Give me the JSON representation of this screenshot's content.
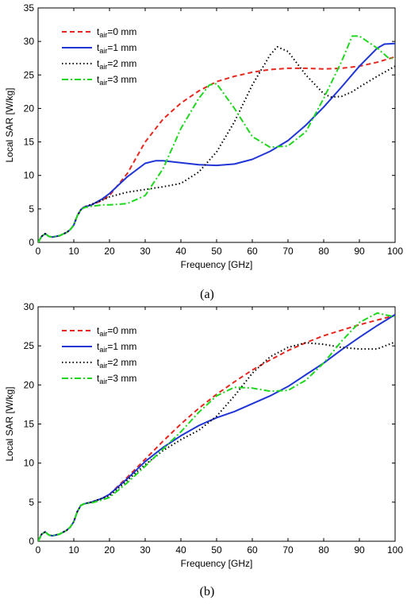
{
  "chart_data": [
    {
      "type": "line",
      "caption": "(a)",
      "xlabel": "Frequency [GHz]",
      "ylabel": "Local SAR [W/kg]",
      "xlim": [
        0,
        100
      ],
      "ylim": [
        0,
        35
      ],
      "xticks": [
        "0",
        "10",
        "20",
        "30",
        "40",
        "50",
        "60",
        "70",
        "80",
        "90",
        "100"
      ],
      "yticks": [
        "0",
        "5",
        "10",
        "15",
        "20",
        "25",
        "30",
        "35"
      ],
      "grid": false,
      "legend_position": "top-left",
      "series": [
        {
          "name_sub": "air",
          "name_main": "t",
          "name_rest": "=0 mm",
          "color": "#e8261d",
          "dash": "dashed",
          "points": [
            [
              0,
              0
            ],
            [
              1,
              0.9
            ],
            [
              2,
              1.3
            ],
            [
              3,
              0.9
            ],
            [
              4,
              0.8
            ],
            [
              6,
              1.0
            ],
            [
              8,
              1.5
            ],
            [
              9,
              1.9
            ],
            [
              10,
              2.6
            ],
            [
              11,
              4.0
            ],
            [
              12,
              4.9
            ],
            [
              13,
              5.3
            ],
            [
              15,
              5.6
            ],
            [
              18,
              6.3
            ],
            [
              20,
              7.0
            ],
            [
              25,
              10.3
            ],
            [
              30,
              15.0
            ],
            [
              35,
              18.4
            ],
            [
              40,
              20.8
            ],
            [
              45,
              22.6
            ],
            [
              50,
              24.0
            ],
            [
              55,
              24.8
            ],
            [
              60,
              25.4
            ],
            [
              65,
              25.8
            ],
            [
              70,
              26.0
            ],
            [
              75,
              26.0
            ],
            [
              80,
              25.9
            ],
            [
              85,
              26.0
            ],
            [
              90,
              26.3
            ],
            [
              95,
              26.9
            ],
            [
              100,
              27.7
            ]
          ]
        },
        {
          "name_sub": "air",
          "name_main": "t",
          "name_rest": "=1 mm",
          "color": "#1f35d6",
          "dash": "solid",
          "points": [
            [
              0,
              0
            ],
            [
              1,
              0.9
            ],
            [
              2,
              1.3
            ],
            [
              3,
              0.9
            ],
            [
              4,
              0.8
            ],
            [
              6,
              1.0
            ],
            [
              8,
              1.5
            ],
            [
              9,
              1.9
            ],
            [
              10,
              2.6
            ],
            [
              11,
              4.0
            ],
            [
              12,
              4.9
            ],
            [
              13,
              5.3
            ],
            [
              15,
              5.6
            ],
            [
              18,
              6.5
            ],
            [
              20,
              7.3
            ],
            [
              25,
              9.8
            ],
            [
              30,
              11.8
            ],
            [
              33,
              12.2
            ],
            [
              35,
              12.2
            ],
            [
              40,
              11.9
            ],
            [
              45,
              11.6
            ],
            [
              50,
              11.5
            ],
            [
              55,
              11.7
            ],
            [
              60,
              12.4
            ],
            [
              65,
              13.6
            ],
            [
              70,
              15.2
            ],
            [
              75,
              17.5
            ],
            [
              80,
              20.2
            ],
            [
              85,
              23.2
            ],
            [
              90,
              26.3
            ],
            [
              95,
              29.0
            ],
            [
              97,
              29.6
            ],
            [
              100,
              29.7
            ]
          ]
        },
        {
          "name_sub": "air",
          "name_main": "t",
          "name_rest": "=2 mm",
          "color": "#000000",
          "dash": "dotted",
          "points": [
            [
              0,
              0
            ],
            [
              1,
              0.9
            ],
            [
              2,
              1.3
            ],
            [
              3,
              0.9
            ],
            [
              4,
              0.8
            ],
            [
              6,
              1.0
            ],
            [
              8,
              1.5
            ],
            [
              9,
              1.9
            ],
            [
              10,
              2.6
            ],
            [
              11,
              4.0
            ],
            [
              12,
              4.9
            ],
            [
              13,
              5.3
            ],
            [
              15,
              5.7
            ],
            [
              18,
              6.3
            ],
            [
              20,
              6.8
            ],
            [
              25,
              7.5
            ],
            [
              30,
              7.9
            ],
            [
              35,
              8.3
            ],
            [
              40,
              8.8
            ],
            [
              45,
              10.5
            ],
            [
              50,
              13.5
            ],
            [
              55,
              18.0
            ],
            [
              60,
              23.5
            ],
            [
              65,
              28.0
            ],
            [
              67,
              29.2
            ],
            [
              70,
              28.5
            ],
            [
              75,
              25.0
            ],
            [
              80,
              22.2
            ],
            [
              82,
              21.7
            ],
            [
              85,
              21.8
            ],
            [
              88,
              22.5
            ],
            [
              90,
              23.2
            ],
            [
              95,
              24.8
            ],
            [
              100,
              26.3
            ]
          ]
        },
        {
          "name_sub": "air",
          "name_main": "t",
          "name_rest": "=3 mm",
          "color": "#1ed81e",
          "dash": "dashdot",
          "points": [
            [
              0,
              0
            ],
            [
              1,
              0.9
            ],
            [
              2,
              1.3
            ],
            [
              3,
              0.9
            ],
            [
              4,
              0.8
            ],
            [
              6,
              1.0
            ],
            [
              8,
              1.5
            ],
            [
              9,
              1.9
            ],
            [
              10,
              2.6
            ],
            [
              11,
              4.0
            ],
            [
              12,
              4.9
            ],
            [
              13,
              5.2
            ],
            [
              15,
              5.4
            ],
            [
              18,
              5.6
            ],
            [
              20,
              5.6
            ],
            [
              25,
              5.8
            ],
            [
              30,
              7.0
            ],
            [
              35,
              11.0
            ],
            [
              40,
              17.0
            ],
            [
              45,
              21.5
            ],
            [
              48,
              23.5
            ],
            [
              50,
              23.7
            ],
            [
              55,
              20.0
            ],
            [
              60,
              15.8
            ],
            [
              65,
              14.2
            ],
            [
              70,
              14.4
            ],
            [
              75,
              16.5
            ],
            [
              80,
              21.5
            ],
            [
              85,
              27.0
            ],
            [
              88,
              30.8
            ],
            [
              90,
              30.8
            ],
            [
              95,
              29.0
            ],
            [
              98,
              27.6
            ],
            [
              100,
              27.4
            ]
          ]
        }
      ]
    },
    {
      "type": "line",
      "caption": "(b)",
      "xlabel": "Frequency [GHz]",
      "ylabel": "Local SAR [W/kg]",
      "xlim": [
        0,
        100
      ],
      "ylim": [
        0,
        30
      ],
      "xticks": [
        "0",
        "10",
        "20",
        "30",
        "40",
        "50",
        "60",
        "70",
        "80",
        "90",
        "100"
      ],
      "yticks": [
        "0",
        "5",
        "10",
        "15",
        "20",
        "25",
        "30"
      ],
      "grid": false,
      "legend_position": "top-left",
      "series": [
        {
          "name_sub": "air",
          "name_main": "t",
          "name_rest": "=0 mm",
          "color": "#e8261d",
          "dash": "dashed",
          "points": [
            [
              0,
              0
            ],
            [
              1,
              0.9
            ],
            [
              2,
              1.2
            ],
            [
              3,
              0.8
            ],
            [
              4,
              0.7
            ],
            [
              6,
              0.9
            ],
            [
              8,
              1.4
            ],
            [
              9,
              1.8
            ],
            [
              10,
              2.5
            ],
            [
              11,
              3.8
            ],
            [
              12,
              4.6
            ],
            [
              13,
              4.8
            ],
            [
              15,
              5.0
            ],
            [
              18,
              5.5
            ],
            [
              20,
              6.0
            ],
            [
              25,
              8.2
            ],
            [
              30,
              10.5
            ],
            [
              35,
              12.8
            ],
            [
              40,
              15.0
            ],
            [
              45,
              17.0
            ],
            [
              50,
              18.8
            ],
            [
              55,
              20.4
            ],
            [
              60,
              21.9
            ],
            [
              65,
              23.2
            ],
            [
              70,
              24.4
            ],
            [
              75,
              25.4
            ],
            [
              80,
              26.3
            ],
            [
              85,
              27.0
            ],
            [
              90,
              27.7
            ],
            [
              95,
              28.3
            ],
            [
              100,
              28.9
            ]
          ]
        },
        {
          "name_sub": "air",
          "name_main": "t",
          "name_rest": "=1 mm",
          "color": "#1f35d6",
          "dash": "solid",
          "points": [
            [
              0,
              0
            ],
            [
              1,
              0.9
            ],
            [
              2,
              1.2
            ],
            [
              3,
              0.8
            ],
            [
              4,
              0.7
            ],
            [
              6,
              0.9
            ],
            [
              8,
              1.4
            ],
            [
              9,
              1.8
            ],
            [
              10,
              2.5
            ],
            [
              11,
              3.8
            ],
            [
              12,
              4.6
            ],
            [
              13,
              4.8
            ],
            [
              15,
              5.0
            ],
            [
              18,
              5.5
            ],
            [
              20,
              6.0
            ],
            [
              25,
              8.0
            ],
            [
              30,
              10.2
            ],
            [
              35,
              12.0
            ],
            [
              40,
              13.5
            ],
            [
              45,
              14.8
            ],
            [
              50,
              15.8
            ],
            [
              55,
              16.6
            ],
            [
              60,
              17.6
            ],
            [
              65,
              18.6
            ],
            [
              70,
              19.8
            ],
            [
              75,
              21.3
            ],
            [
              80,
              22.8
            ],
            [
              85,
              24.5
            ],
            [
              90,
              26.1
            ],
            [
              95,
              27.6
            ],
            [
              100,
              29.0
            ]
          ]
        },
        {
          "name_sub": "air",
          "name_main": "t",
          "name_rest": "=2 mm",
          "color": "#000000",
          "dash": "dotted",
          "points": [
            [
              0,
              0
            ],
            [
              1,
              0.9
            ],
            [
              2,
              1.2
            ],
            [
              3,
              0.8
            ],
            [
              4,
              0.7
            ],
            [
              6,
              0.9
            ],
            [
              8,
              1.4
            ],
            [
              9,
              1.8
            ],
            [
              10,
              2.5
            ],
            [
              11,
              3.8
            ],
            [
              12,
              4.6
            ],
            [
              13,
              4.8
            ],
            [
              15,
              5.0
            ],
            [
              18,
              5.5
            ],
            [
              20,
              5.8
            ],
            [
              25,
              7.8
            ],
            [
              30,
              9.8
            ],
            [
              35,
              11.6
            ],
            [
              40,
              13.0
            ],
            [
              45,
              14.2
            ],
            [
              50,
              16.0
            ],
            [
              55,
              18.6
            ],
            [
              60,
              21.5
            ],
            [
              65,
              23.6
            ],
            [
              70,
              24.8
            ],
            [
              75,
              25.4
            ],
            [
              80,
              25.2
            ],
            [
              85,
              24.8
            ],
            [
              90,
              24.6
            ],
            [
              95,
              24.6
            ],
            [
              100,
              25.5
            ]
          ]
        },
        {
          "name_sub": "air",
          "name_main": "t",
          "name_rest": "=3 mm",
          "color": "#1ed81e",
          "dash": "dashdot",
          "points": [
            [
              0,
              0
            ],
            [
              1,
              0.9
            ],
            [
              2,
              1.2
            ],
            [
              3,
              0.8
            ],
            [
              4,
              0.7
            ],
            [
              6,
              0.9
            ],
            [
              8,
              1.4
            ],
            [
              9,
              1.8
            ],
            [
              10,
              2.5
            ],
            [
              11,
              3.8
            ],
            [
              12,
              4.6
            ],
            [
              13,
              4.8
            ],
            [
              15,
              4.9
            ],
            [
              18,
              5.3
            ],
            [
              20,
              5.6
            ],
            [
              25,
              7.5
            ],
            [
              30,
              9.6
            ],
            [
              35,
              11.8
            ],
            [
              40,
              14.0
            ],
            [
              45,
              16.5
            ],
            [
              50,
              18.6
            ],
            [
              55,
              19.7
            ],
            [
              60,
              19.6
            ],
            [
              65,
              19.2
            ],
            [
              70,
              19.3
            ],
            [
              75,
              20.6
            ],
            [
              80,
              22.8
            ],
            [
              85,
              25.6
            ],
            [
              90,
              28.0
            ],
            [
              95,
              29.2
            ],
            [
              100,
              28.7
            ]
          ]
        }
      ]
    }
  ]
}
